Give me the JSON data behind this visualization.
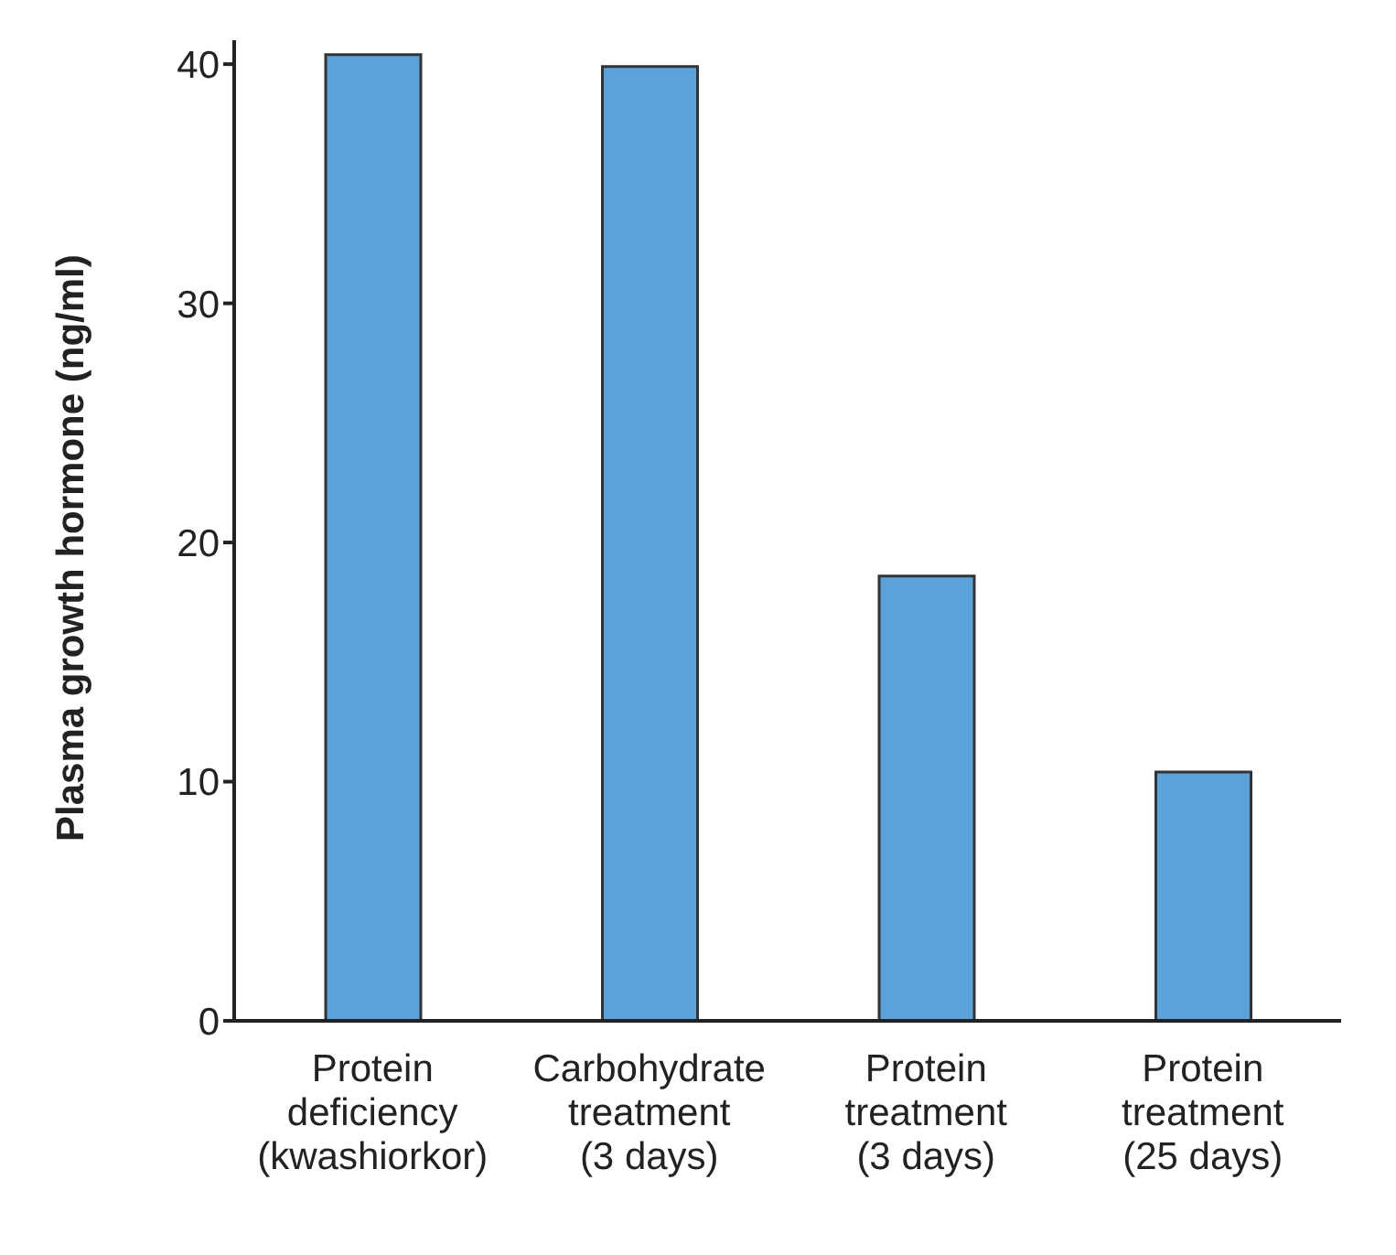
{
  "chart_data": {
    "type": "bar",
    "ylabel": "Plasma growth hormone (ng/ml)",
    "categories": [
      "Protein\ndeficiency\n(kwashiorkor)",
      "Carbohydrate\ntreatment\n(3 days)",
      "Protein\ntreatment\n(3 days)",
      "Protein\ntreatment\n(25 days)"
    ],
    "values": [
      40.4,
      39.9,
      18.6,
      10.4
    ],
    "color": "#5aa2dc",
    "ylim": [
      0,
      41
    ],
    "yticks": [
      0,
      10,
      20,
      30,
      40
    ],
    "grid": false,
    "legend": false
  }
}
